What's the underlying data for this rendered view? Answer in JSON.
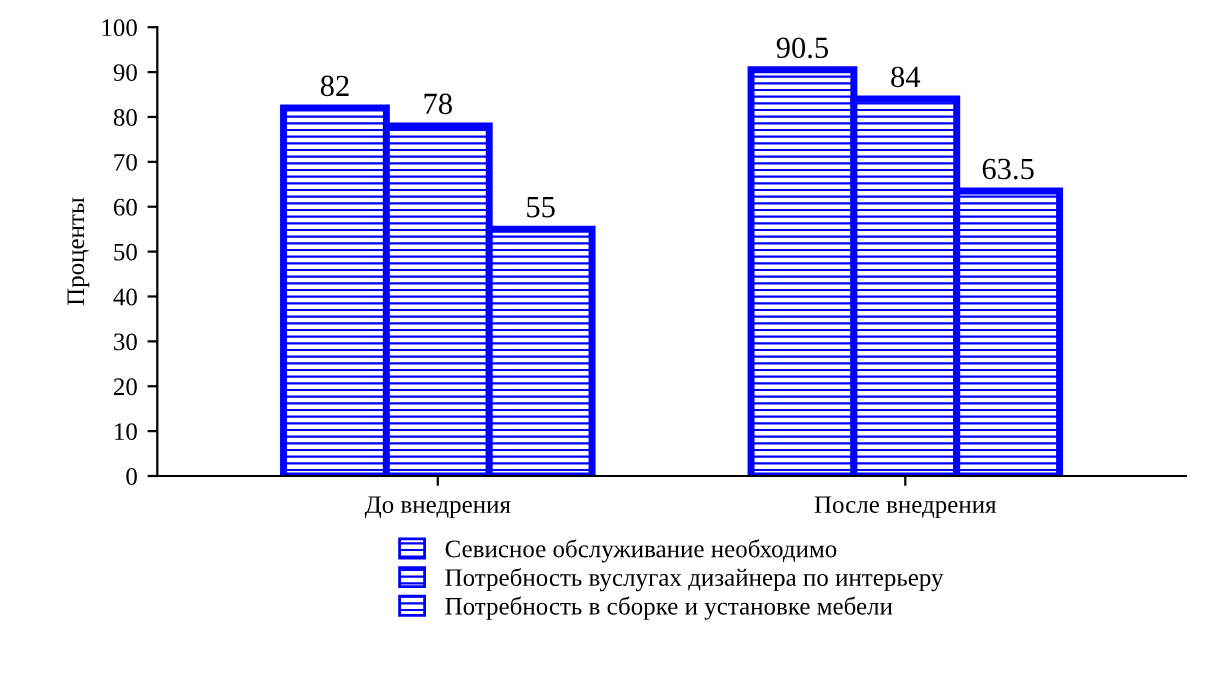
{
  "chart_data": {
    "type": "bar",
    "ylabel": "Проценты",
    "categories": [
      "До внедрения",
      "После внедрения"
    ],
    "series": [
      {
        "name": "Севисное обслуживание необходимо",
        "color": "#0000ff",
        "values": [
          82,
          90.5
        ]
      },
      {
        "name": "Потребность вуслугах дизайнера по интерьеру",
        "color": "#0000ff",
        "values": [
          78,
          84
        ]
      },
      {
        "name": "Потребность в сборке и установке мебели",
        "color": "#0000ff",
        "values": [
          55,
          63.5
        ]
      }
    ],
    "ylim": [
      0,
      100
    ],
    "yticks": [
      0,
      10,
      20,
      30,
      40,
      50,
      60,
      70,
      80,
      90,
      100
    ],
    "data_labels": true,
    "grid": false,
    "legend": "bottom"
  }
}
